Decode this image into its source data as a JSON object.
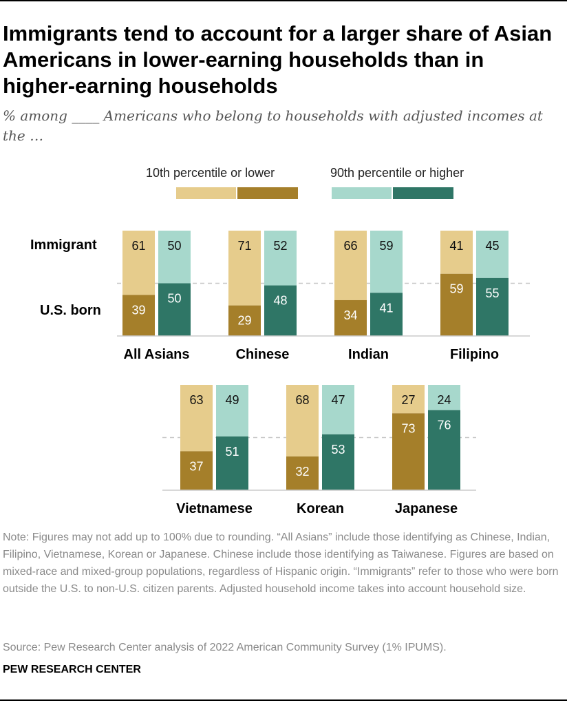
{
  "title": "Immigrants tend to account for a larger share of Asian Americans in lower-earning households than in higher-earning households",
  "subtitle": "% among ____ Americans who belong to households with adjusted incomes at the …",
  "legend": {
    "low": "10th percentile or lower",
    "high": "90th percentile or higher"
  },
  "row_labels": {
    "immigrant": "Immigrant",
    "us_born": "U.S. born"
  },
  "colors": {
    "low_immigrant": "#e6cc8c",
    "low_usborn": "#a57f2a",
    "high_immigrant": "#a7d8cc",
    "high_usborn": "#2f7666",
    "baseline": "#cccccc",
    "midline": "#c8c8c8"
  },
  "chart_data": {
    "type": "bar",
    "stacked": true,
    "stack_order": [
      "U.S. born",
      "Immigrant"
    ],
    "ylim": [
      0,
      100
    ],
    "series": [
      {
        "name": "10th percentile or lower"
      },
      {
        "name": "90th percentile or higher"
      }
    ],
    "groups": [
      {
        "name": "All Asians",
        "low": {
          "immigrant": 61,
          "us_born": 39
        },
        "high": {
          "immigrant": 50,
          "us_born": 50
        }
      },
      {
        "name": "Chinese",
        "low": {
          "immigrant": 71,
          "us_born": 29
        },
        "high": {
          "immigrant": 52,
          "us_born": 48
        }
      },
      {
        "name": "Indian",
        "low": {
          "immigrant": 66,
          "us_born": 34
        },
        "high": {
          "immigrant": 59,
          "us_born": 41
        }
      },
      {
        "name": "Filipino",
        "low": {
          "immigrant": 41,
          "us_born": 59
        },
        "high": {
          "immigrant": 45,
          "us_born": 55
        }
      },
      {
        "name": "Vietnamese",
        "low": {
          "immigrant": 63,
          "us_born": 37
        },
        "high": {
          "immigrant": 49,
          "us_born": 51
        }
      },
      {
        "name": "Korean",
        "low": {
          "immigrant": 68,
          "us_born": 32
        },
        "high": {
          "immigrant": 47,
          "us_born": 53
        }
      },
      {
        "name": "Japanese",
        "low": {
          "immigrant": 27,
          "us_born": 73
        },
        "high": {
          "immigrant": 24,
          "us_born": 76
        }
      }
    ]
  },
  "note": "Note: Figures may not add up to 100% due to rounding. “All Asians” include those identifying as Chinese, Indian, Filipino, Vietnamese, Korean or Japanese. Chinese include those identifying as Taiwanese. Figures are based on mixed-race and mixed-group populations, regardless of Hispanic origin. “Immigrants” refer to those who were born outside the U.S. to non-U.S. citizen parents. Adjusted household income takes into account household size.",
  "source": "Source: Pew Research Center analysis of 2022 American Community Survey (1% IPUMS).",
  "brand": "PEW RESEARCH CENTER"
}
